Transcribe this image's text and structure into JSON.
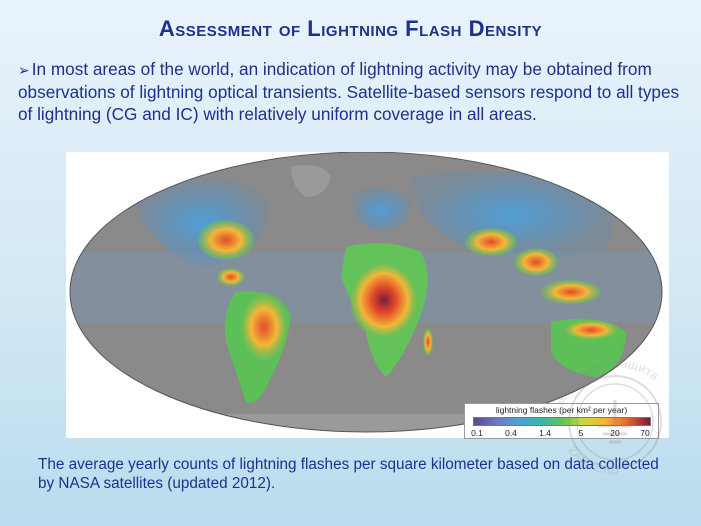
{
  "slide": {
    "title": "Assessment of Lightning Flash Density",
    "bullet_glyph": "➢",
    "bullet_text": "In most areas of the world, an indication of lightning activity may be obtained from observations of lightning optical transients. Satellite-based sensors respond to all types of lightning  (CG and IC) with relatively uniform coverage in all areas.",
    "caption": "The average yearly counts of lightning flashes per square kilometer based on data collected by NASA satellites (updated 2012)."
  },
  "map": {
    "legend_title": "lightning flashes (per km² per year)",
    "legend_ticks": [
      "0.1",
      "0.4",
      "1.4",
      "5",
      "20",
      "70"
    ],
    "colors": {
      "ocean": "#8a8a8a",
      "low": "#4f8fc8",
      "mid": "#5cbf58",
      "high": "#f2b838",
      "very_high": "#e44a2a",
      "extreme": "#7b1a3b"
    }
  },
  "watermark": {
    "text_top": "заземление и защита",
    "text_bottom": "ZANDZ.RU"
  }
}
